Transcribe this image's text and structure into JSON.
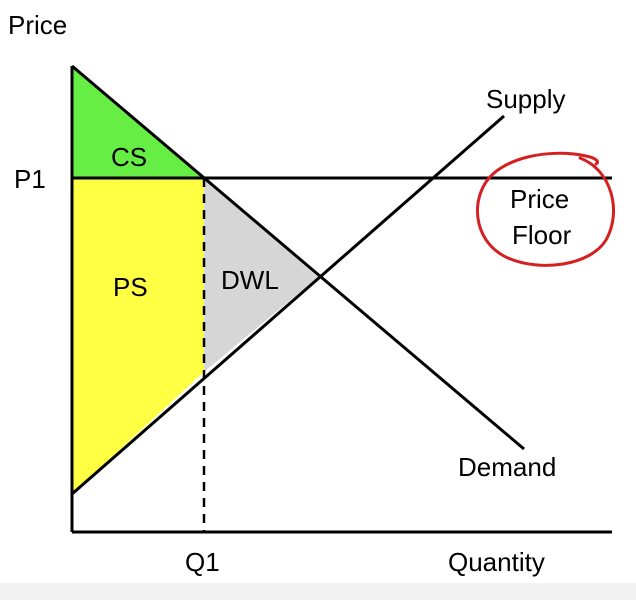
{
  "diagram": {
    "axes": {
      "y_label": "Price",
      "x_label": "Quantity"
    },
    "ticks": {
      "price_level": "P1",
      "quantity_level": "Q1"
    },
    "curves": {
      "supply": "Supply",
      "demand": "Demand"
    },
    "regions": {
      "consumer_surplus": "CS",
      "producer_surplus": "PS",
      "deadweight_loss": "DWL"
    },
    "policy": {
      "line1": "Price",
      "line2": "Floor"
    },
    "colors": {
      "consumer_surplus": "#66ee44",
      "producer_surplus": "#ffff44",
      "deadweight_loss": "#d6d6d6",
      "annotation_circle": "#d42020",
      "lines": "#000000"
    }
  }
}
